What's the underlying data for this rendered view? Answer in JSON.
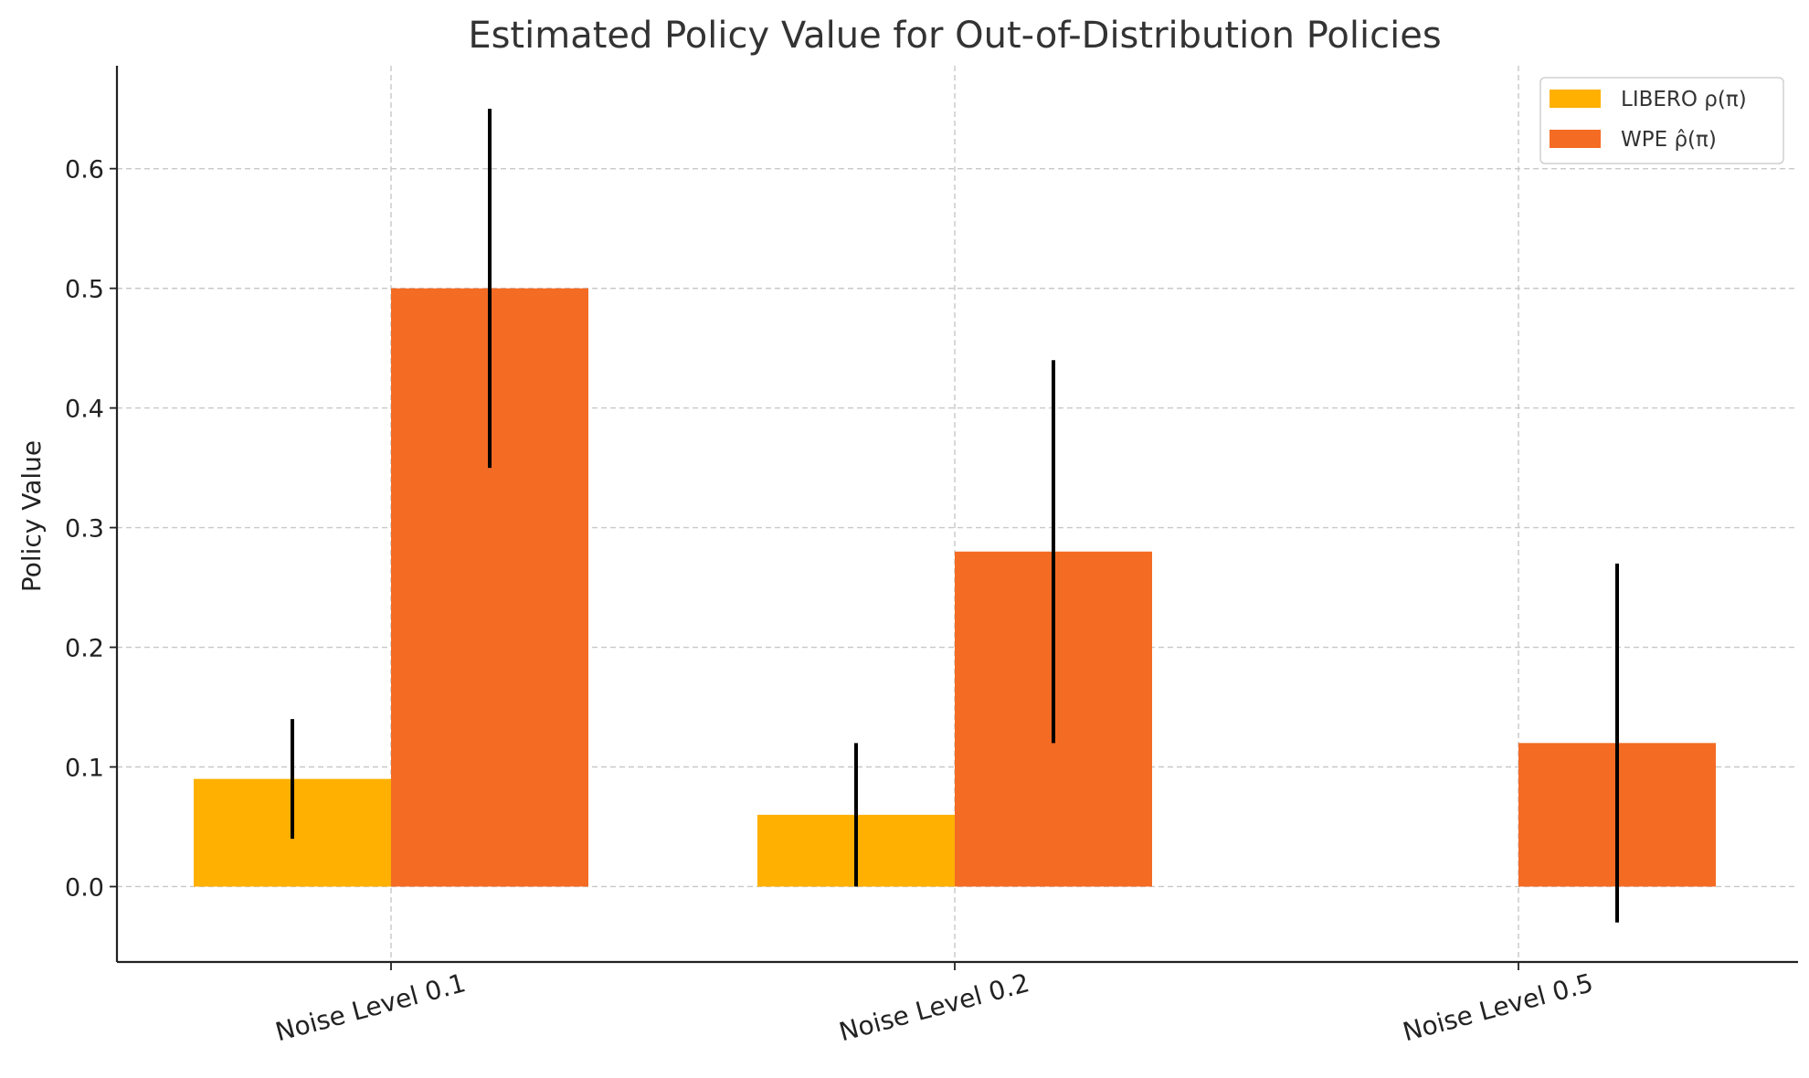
{
  "chart_data": {
    "type": "bar",
    "title": "Estimated Policy Value for Out-of-Distribution Policies",
    "xlabel": "",
    "ylabel": "Policy Value",
    "categories": [
      "Noise Level 0.1",
      "Noise Level 0.2",
      "Noise Level 0.5"
    ],
    "series": [
      {
        "name": "LIBERO ρ(π)",
        "color": "#FFB000",
        "values": [
          0.09,
          0.06,
          0.0
        ],
        "error": [
          0.05,
          0.06,
          0.0
        ]
      },
      {
        "name": "WPE ρ̂(π)",
        "color": "#F46B23",
        "values": [
          0.5,
          0.28,
          0.12
        ],
        "error": [
          0.15,
          0.16,
          0.15
        ]
      }
    ],
    "ylim": [
      -0.063,
      0.686
    ],
    "yticks": [
      "0.0",
      "0.1",
      "0.2",
      "0.3",
      "0.4",
      "0.5",
      "0.6"
    ],
    "grid": true,
    "legend_position": "top-right"
  }
}
